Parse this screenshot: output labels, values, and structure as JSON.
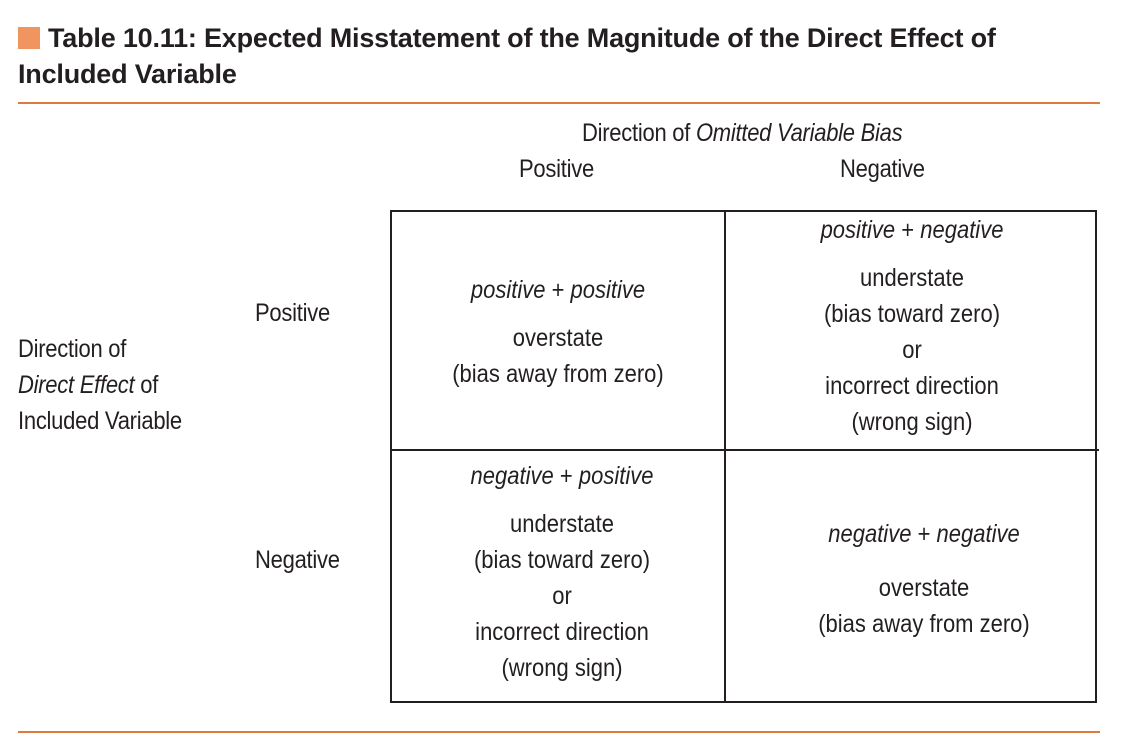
{
  "title": {
    "text": "Table 10.11:  Expected Misstatement of the Magnitude of the Direct Effect of Included Variable",
    "marker_color": "#f0955f",
    "rule_color": "#e07a3c"
  },
  "column_header": {
    "prefix": "Direction of ",
    "italic": "Omitted Variable Bias",
    "columns": [
      "Positive",
      "Negative"
    ]
  },
  "row_header": {
    "line1": "Direction of",
    "line2_italic": "Direct Effect",
    "line2_rest": " of",
    "line3": "Included Variable",
    "rows": [
      "Positive",
      "Negative"
    ]
  },
  "cells": {
    "pos_pos": {
      "combo_a": "positive",
      "plus": "+",
      "combo_b": "positive",
      "lines": [
        "overstate",
        "(bias away from zero)"
      ]
    },
    "pos_neg": {
      "combo_a": "positive",
      "plus": "+",
      "combo_b": "negative",
      "lines": [
        "understate",
        "(bias toward zero)",
        "or",
        "incorrect direction",
        "(wrong sign)"
      ]
    },
    "neg_pos": {
      "combo_a": "negative",
      "plus": "+",
      "combo_b": "positive",
      "lines": [
        "understate",
        "(bias toward zero)",
        "or",
        "incorrect direction",
        "(wrong sign)"
      ]
    },
    "neg_neg": {
      "combo_a": "negative",
      "plus": "+",
      "combo_b": "negative",
      "lines": [
        "overstate",
        "(bias away from zero)"
      ]
    }
  }
}
